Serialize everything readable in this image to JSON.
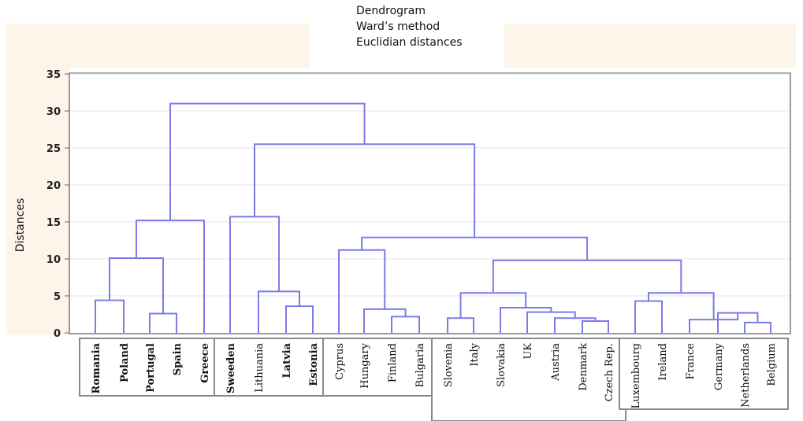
{
  "chart_data": {
    "type": "dendrogram",
    "title_lines": [
      "Dendrogram",
      "Ward’s method",
      "Euclidian distances"
    ],
    "ylabel": "Distances",
    "xlabel": "",
    "ylim": [
      0,
      35
    ],
    "yticks": [
      0,
      5,
      10,
      15,
      20,
      25,
      30,
      35
    ],
    "grid": true,
    "line_color": "#7b7bea",
    "leaves": [
      "Romania",
      "Poland",
      "Portugal",
      "Spain",
      "Greece",
      "Sweeden",
      "Lithuania",
      "Latvia",
      "Estonia",
      "Cyprus",
      "Hungary",
      "Finland",
      "Bulgaria",
      "Slovenia",
      "Italy",
      "Slovakia",
      "UK",
      "Austria",
      "Denmark",
      "Czech Rep.",
      "Luxembourg",
      "Ireland",
      "France",
      "Germany",
      "Netherlands",
      "Belgium"
    ],
    "merges": [
      {
        "a": "L0",
        "b": "L1",
        "height": 4.4
      },
      {
        "a": "L2",
        "b": "L3",
        "height": 2.6
      },
      {
        "a": "M0",
        "b": "M1",
        "height": 10.1
      },
      {
        "a": "M2",
        "b": "L4",
        "height": 15.2
      },
      {
        "a": "L7",
        "b": "L8",
        "height": 3.6
      },
      {
        "a": "L6",
        "b": "M4",
        "height": 5.6
      },
      {
        "a": "L5",
        "b": "M5",
        "height": 15.7
      },
      {
        "a": "L11",
        "b": "L12",
        "height": 2.2
      },
      {
        "a": "L10",
        "b": "M7",
        "height": 3.2
      },
      {
        "a": "L9",
        "b": "M8",
        "height": 11.2
      },
      {
        "a": "L13",
        "b": "L14",
        "height": 2.0
      },
      {
        "a": "L18",
        "b": "L19",
        "height": 1.6
      },
      {
        "a": "L17",
        "b": "M11",
        "height": 2.0
      },
      {
        "a": "L16",
        "b": "M12",
        "height": 2.8
      },
      {
        "a": "L15",
        "b": "M13",
        "height": 3.4
      },
      {
        "a": "M10",
        "b": "M14",
        "height": 5.4
      },
      {
        "a": "L20",
        "b": "L21",
        "height": 4.3
      },
      {
        "a": "L24",
        "b": "L25",
        "height": 1.4
      },
      {
        "a": "L23",
        "b": "M17",
        "height": 2.7
      },
      {
        "a": "L22",
        "b": "M18",
        "height": 1.8
      },
      {
        "a": "M16",
        "b": "M19",
        "height": 5.4
      },
      {
        "a": "M15",
        "b": "M20",
        "height": 9.8
      },
      {
        "a": "M9",
        "b": "M21",
        "height": 12.9
      },
      {
        "a": "M6",
        "b": "M22",
        "height": 25.5
      },
      {
        "a": "M3",
        "b": "M23",
        "height": 31.0
      }
    ]
  }
}
